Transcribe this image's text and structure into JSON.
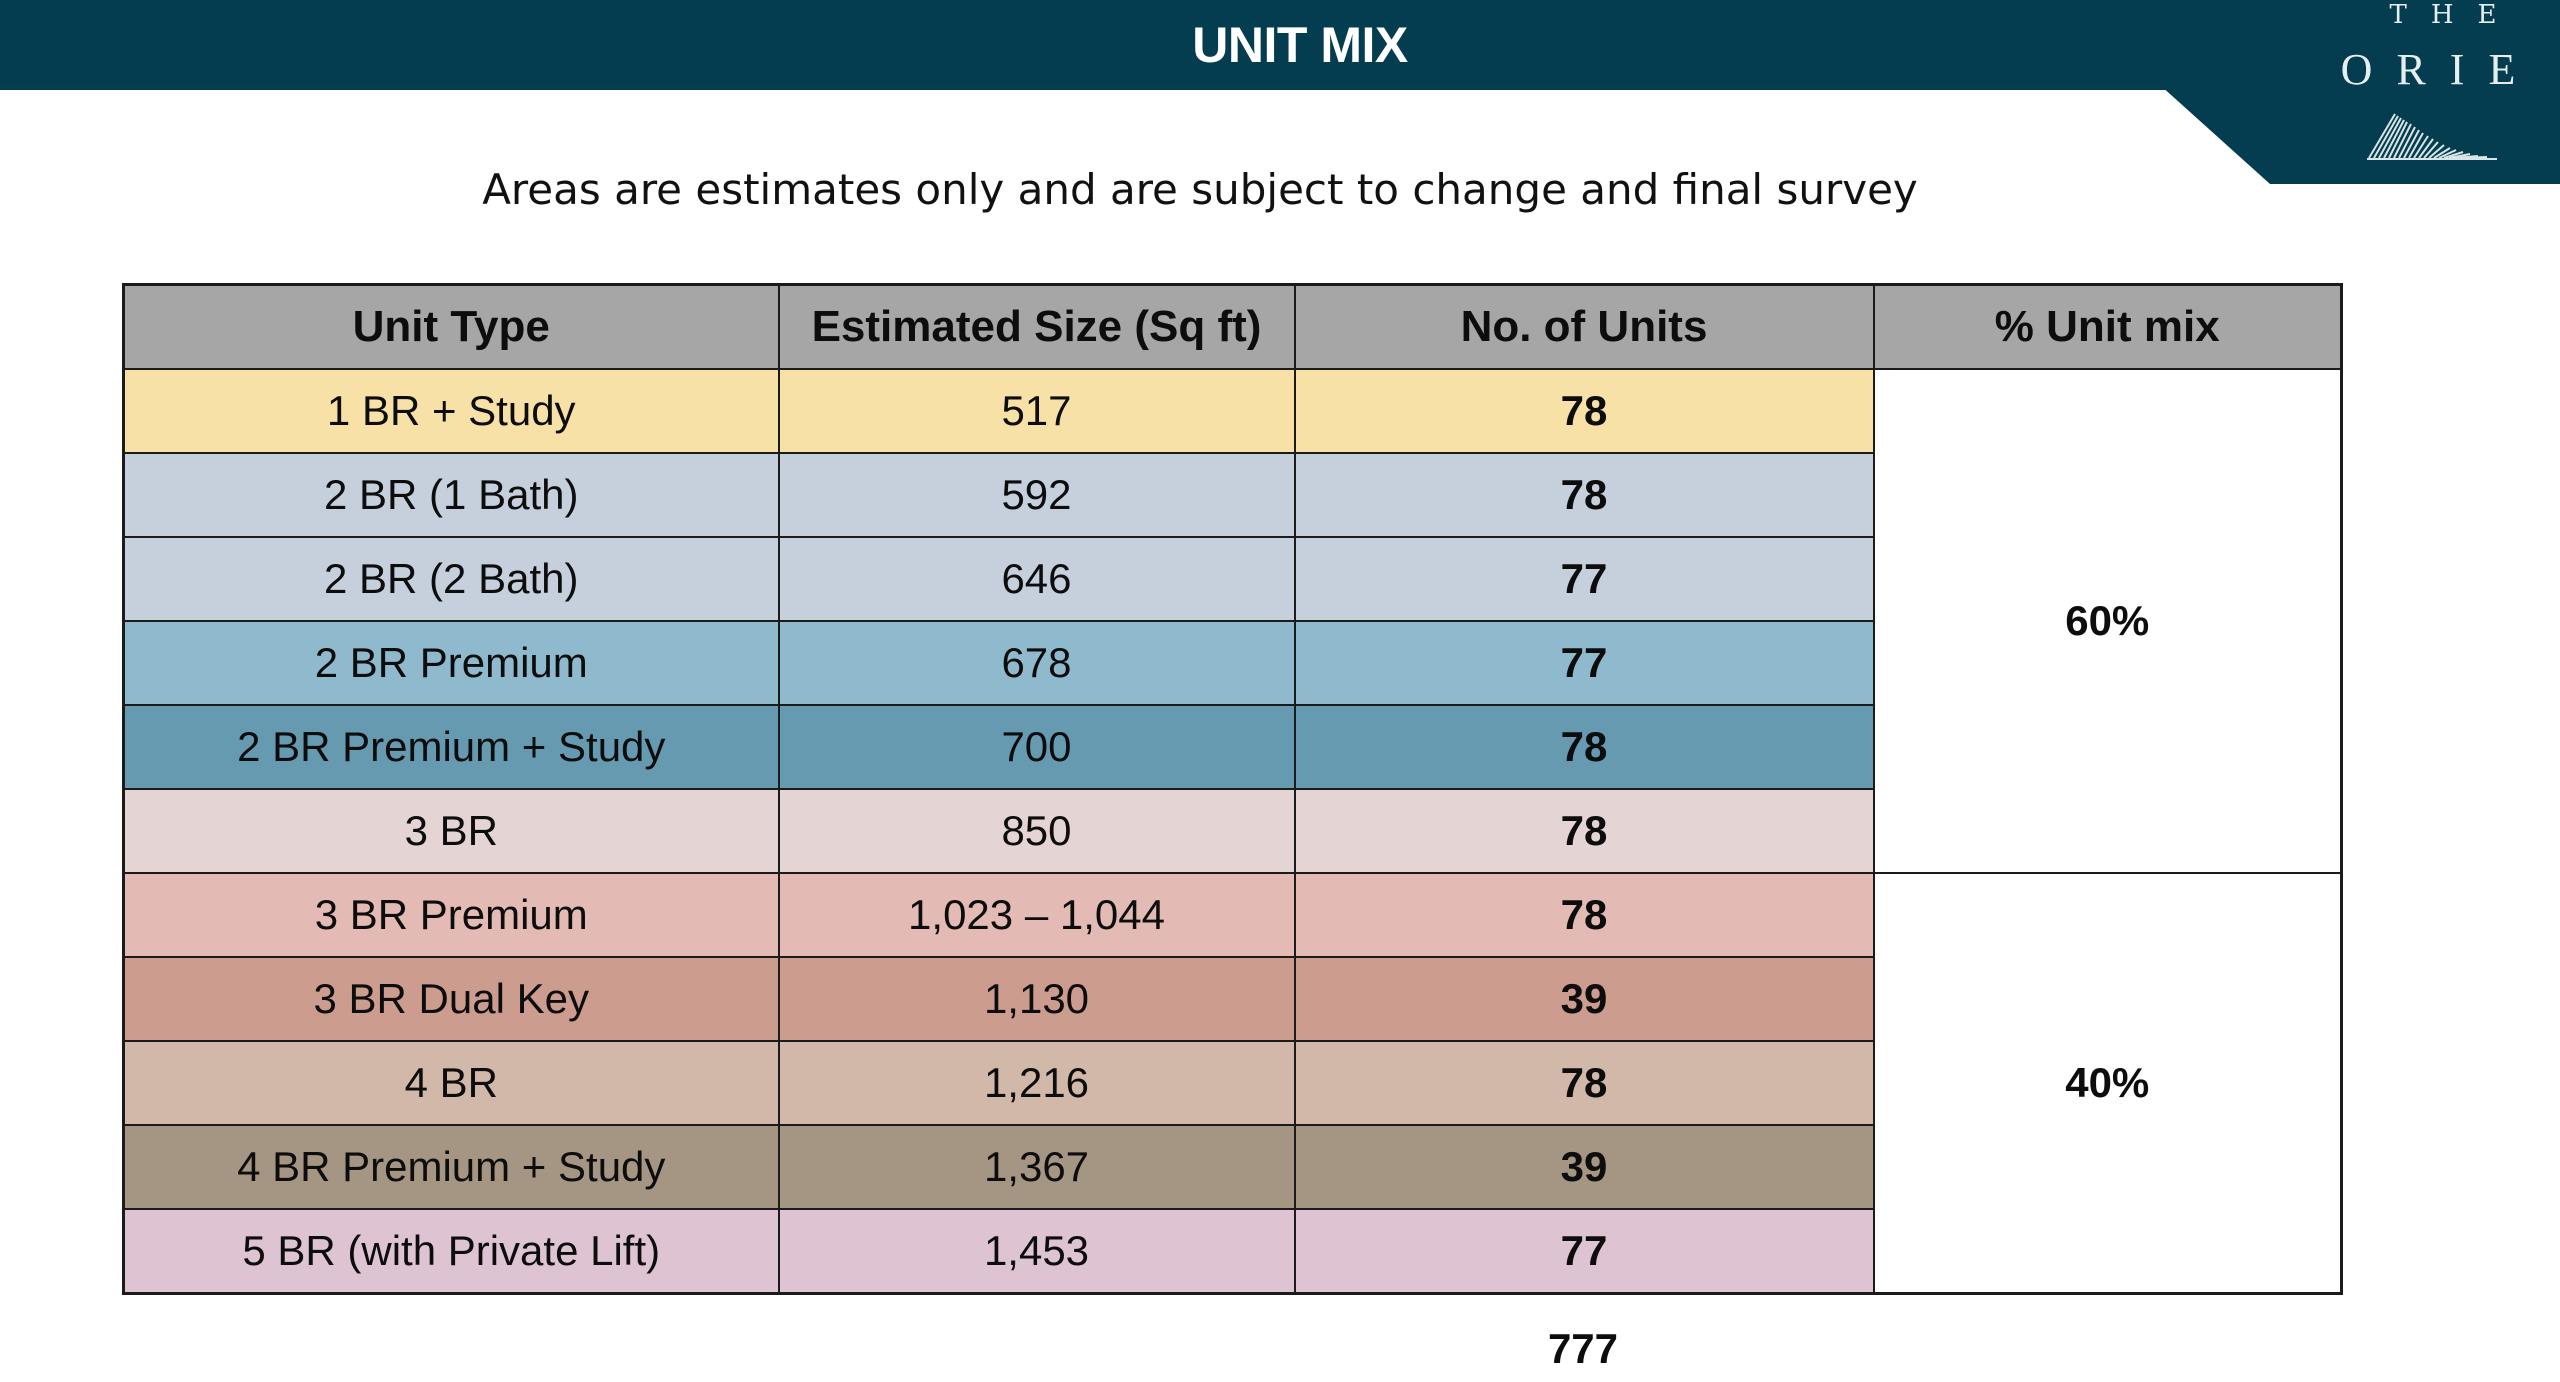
{
  "header": {
    "title": "UNIT MIX"
  },
  "logo": {
    "the": "THE",
    "name": "ORIE"
  },
  "subtitle": "Areas are estimates only and are subject to change and final survey",
  "table": {
    "headers": [
      "Unit Type",
      "Estimated Size (Sq ft)",
      "No. of Units",
      "% Unit mix"
    ],
    "rows": [
      {
        "type": "1 BR + Study",
        "size": "517",
        "units": "78",
        "color": "#f7e1a6"
      },
      {
        "type": "2 BR (1 Bath)",
        "size": "592",
        "units": "78",
        "color": "#c5d0dc"
      },
      {
        "type": "2 BR (2 Bath)",
        "size": "646",
        "units": "77",
        "color": "#c5d0dc"
      },
      {
        "type": "2 BR Premium",
        "size": "678",
        "units": "77",
        "color": "#8fb9cd"
      },
      {
        "type": "2 BR Premium + Study",
        "size": "700",
        "units": "78",
        "color": "#659ab1"
      },
      {
        "type": "3 BR",
        "size": "850",
        "units": "78",
        "color": "#e5d4d4"
      },
      {
        "type": "3 BR Premium",
        "size": "1,023 – 1,044",
        "units": "78",
        "color": "#e3bbb4"
      },
      {
        "type": "3 BR Dual Key",
        "size": "1,130",
        "units": "39",
        "color": "#cc9c8f"
      },
      {
        "type": "4 BR",
        "size": "1,216",
        "units": "78",
        "color": "#d2b8a9"
      },
      {
        "type": "4 BR Premium + Study",
        "size": "1,367",
        "units": "39",
        "color": "#a59583"
      },
      {
        "type": "5 BR (with Private Lift)",
        "size": "1,453",
        "units": "77",
        "color": "#dec4d2"
      }
    ],
    "mix": [
      {
        "value": "60%",
        "rowspan": 6
      },
      {
        "value": "40%",
        "rowspan": 5
      }
    ],
    "total_units": "777"
  },
  "colors": {
    "header_bg": "#033d4f",
    "table_header_bg": "#a6a6a6"
  }
}
